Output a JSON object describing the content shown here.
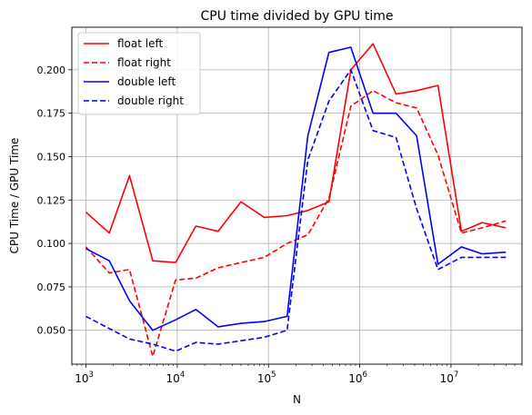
{
  "chart_data": {
    "type": "line",
    "title": "CPU time divided by GPU time",
    "xlabel": "N",
    "ylabel": "CPU Time / GPU Time",
    "xscale": "log",
    "xlim": [
      700,
      60000000
    ],
    "ylim": [
      0.0305,
      0.2245
    ],
    "xticks": [
      {
        "value": 1000,
        "base": "10",
        "exp": "3"
      },
      {
        "value": 10000,
        "base": "10",
        "exp": "4"
      },
      {
        "value": 100000,
        "base": "10",
        "exp": "5"
      },
      {
        "value": 1000000,
        "base": "10",
        "exp": "6"
      },
      {
        "value": 10000000,
        "base": "10",
        "exp": "7"
      }
    ],
    "yticks": [
      "0.050",
      "0.075",
      "0.100",
      "0.125",
      "0.150",
      "0.175",
      "0.200"
    ],
    "grid": true,
    "legend_position": "top-left",
    "x": [
      1000,
      1780,
      3160,
      5620,
      10000,
      17800,
      31600,
      56200,
      100000,
      178000,
      316000,
      562000,
      1000000,
      1780000,
      3160000,
      5620000,
      10000000,
      17800000,
      31600000,
      56200000
    ],
    "series": [
      {
        "name": "float left",
        "color": "#ff0000",
        "dash": "solid",
        "x": [
          1000,
          1800,
          3000,
          5400,
          9600,
          16000,
          28000,
          50000,
          90000,
          160000,
          270000,
          460000,
          800000,
          1400000,
          2500000,
          4200000,
          7200000,
          13000000,
          22000000,
          40000000
        ],
        "values": [
          0.118,
          0.106,
          0.139,
          0.09,
          0.089,
          0.11,
          0.107,
          0.124,
          0.115,
          0.116,
          0.119,
          0.124,
          0.2,
          0.215,
          0.186,
          0.188,
          0.191,
          0.107,
          0.112,
          0.109
        ]
      },
      {
        "name": "float right",
        "color": "#ff0000",
        "dash": "dashed",
        "x": [
          1000,
          1800,
          3000,
          5400,
          9600,
          16000,
          28000,
          50000,
          90000,
          160000,
          270000,
          460000,
          800000,
          1400000,
          2500000,
          4200000,
          7200000,
          13000000,
          22000000,
          40000000
        ],
        "values": [
          0.098,
          0.083,
          0.085,
          0.035,
          0.079,
          0.08,
          0.086,
          0.089,
          0.092,
          0.1,
          0.105,
          0.126,
          0.179,
          0.188,
          0.181,
          0.178,
          0.151,
          0.106,
          0.109,
          0.113
        ]
      },
      {
        "name": "double left",
        "color": "#0000ff",
        "dash": "solid",
        "x": [
          1000,
          1800,
          3000,
          5400,
          9600,
          16000,
          28000,
          50000,
          90000,
          160000,
          270000,
          460000,
          800000,
          1400000,
          2500000,
          4200000,
          7200000,
          13000000,
          22000000,
          40000000
        ],
        "values": [
          0.097,
          0.09,
          0.067,
          0.05,
          0.056,
          0.062,
          0.052,
          0.054,
          0.055,
          0.058,
          0.162,
          0.21,
          0.213,
          0.175,
          0.175,
          0.162,
          0.088,
          0.098,
          0.094,
          0.095
        ]
      },
      {
        "name": "double right",
        "color": "#0000ff",
        "dash": "dashed",
        "x": [
          1000,
          1800,
          3000,
          5400,
          9600,
          16000,
          28000,
          50000,
          90000,
          160000,
          270000,
          460000,
          800000,
          1400000,
          2500000,
          4200000,
          7200000,
          13000000,
          22000000,
          40000000
        ],
        "values": [
          0.058,
          0.051,
          0.045,
          0.042,
          0.038,
          0.043,
          0.042,
          0.044,
          0.046,
          0.05,
          0.148,
          0.182,
          0.2,
          0.165,
          0.161,
          0.12,
          0.085,
          0.092,
          0.092,
          0.092
        ]
      }
    ]
  }
}
